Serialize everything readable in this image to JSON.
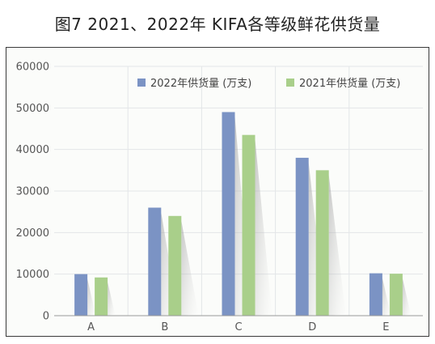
{
  "title": "图7 2021、2022年 KIFA各等级鲜花供货量",
  "chart_data": {
    "type": "bar",
    "title": "图7 2021、2022年 KIFA各等级鲜花供货量",
    "xlabel": "",
    "ylabel": "",
    "categories": [
      "A",
      "B",
      "C",
      "D",
      "E"
    ],
    "series": [
      {
        "name": "2022年供货量 (万支)",
        "color": "#7b93c4",
        "values": [
          10000,
          26000,
          49000,
          38000,
          10200
        ]
      },
      {
        "name": "2021年供货量 (万支)",
        "color": "#a9cf8a",
        "values": [
          9200,
          24000,
          43500,
          35000,
          10100
        ]
      }
    ],
    "ylim": [
      0,
      60000
    ],
    "yticks": [
      0,
      10000,
      20000,
      30000,
      40000,
      50000,
      60000
    ],
    "ytick_labels": [
      "0",
      "10000",
      "20000",
      "30000",
      "40000",
      "50000",
      "60000"
    ],
    "grid": true,
    "legend_position": "top-right"
  }
}
